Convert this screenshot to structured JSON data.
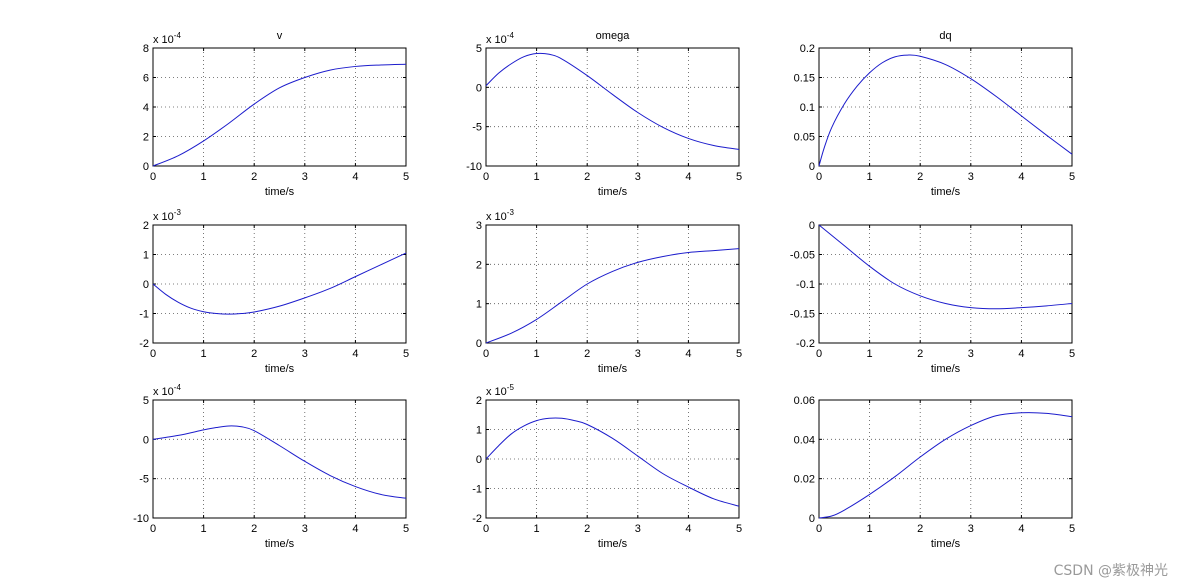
{
  "watermark": "CSDN @紫极神光",
  "colors": {
    "line": "#1c1ccc",
    "grid": "#555555",
    "axes": "#000000"
  },
  "chart_data": [
    {
      "type": "line",
      "title": "v",
      "xlabel": "time/s",
      "ylabel": "",
      "exponent": "-4",
      "xlim": [
        0,
        5
      ],
      "ylim": [
        0,
        8
      ],
      "xticks": [
        0,
        1,
        2,
        3,
        4,
        5
      ],
      "yticks": [
        0,
        2,
        4,
        6,
        8
      ],
      "grid": true,
      "x": [
        0,
        0.5,
        1,
        1.5,
        2,
        2.5,
        3,
        3.5,
        4,
        4.5,
        5
      ],
      "y": [
        0,
        0.7,
        1.7,
        2.9,
        4.2,
        5.3,
        6.0,
        6.5,
        6.75,
        6.85,
        6.9
      ]
    },
    {
      "type": "line",
      "title": "omega",
      "xlabel": "time/s",
      "ylabel": "",
      "exponent": "-4",
      "xlim": [
        0,
        5
      ],
      "ylim": [
        -10,
        5
      ],
      "xticks": [
        0,
        1,
        2,
        3,
        4,
        5
      ],
      "yticks": [
        -10,
        -5,
        0,
        5
      ],
      "grid": true,
      "x": [
        0,
        0.25,
        0.5,
        0.75,
        1,
        1.25,
        1.5,
        2,
        2.5,
        3,
        3.5,
        4,
        4.5,
        5
      ],
      "y": [
        0.2,
        1.8,
        3.0,
        3.9,
        4.3,
        4.2,
        3.6,
        1.5,
        -0.9,
        -3.2,
        -5.1,
        -6.5,
        -7.4,
        -7.9
      ]
    },
    {
      "type": "line",
      "title": "dq",
      "xlabel": "time/s",
      "ylabel": "",
      "exponent": "",
      "xlim": [
        0,
        5
      ],
      "ylim": [
        0,
        0.2
      ],
      "xticks": [
        0,
        1,
        2,
        3,
        4,
        5
      ],
      "yticks": [
        0,
        0.05,
        0.1,
        0.15,
        0.2
      ],
      "grid": true,
      "x": [
        0,
        0.1,
        0.25,
        0.5,
        0.75,
        1,
        1.25,
        1.5,
        1.75,
        2,
        2.5,
        3,
        3.5,
        4,
        4.5,
        5
      ],
      "y": [
        0,
        0.03,
        0.065,
        0.105,
        0.135,
        0.158,
        0.175,
        0.185,
        0.188,
        0.186,
        0.172,
        0.148,
        0.118,
        0.085,
        0.052,
        0.02
      ]
    },
    {
      "type": "line",
      "title": "",
      "xlabel": "time/s",
      "ylabel": "",
      "exponent": "-3",
      "xlim": [
        0,
        5
      ],
      "ylim": [
        -2,
        2
      ],
      "xticks": [
        0,
        1,
        2,
        3,
        4,
        5
      ],
      "yticks": [
        -2,
        -1,
        0,
        1,
        2
      ],
      "grid": true,
      "x": [
        0,
        0.25,
        0.5,
        0.75,
        1,
        1.25,
        1.5,
        1.75,
        2,
        2.5,
        3,
        3.5,
        4,
        4.5,
        5
      ],
      "y": [
        0,
        -0.35,
        -0.62,
        -0.82,
        -0.94,
        -1.0,
        -1.02,
        -1.0,
        -0.95,
        -0.75,
        -0.47,
        -0.15,
        0.25,
        0.65,
        1.05
      ]
    },
    {
      "type": "line",
      "title": "",
      "xlabel": "time/s",
      "ylabel": "",
      "exponent": "-3",
      "xlim": [
        0,
        5
      ],
      "ylim": [
        0,
        3
      ],
      "xticks": [
        0,
        1,
        2,
        3,
        4,
        5
      ],
      "yticks": [
        0,
        1,
        2,
        3
      ],
      "grid": true,
      "x": [
        0,
        0.5,
        1,
        1.5,
        2,
        2.5,
        3,
        3.5,
        4,
        4.5,
        5
      ],
      "y": [
        0,
        0.25,
        0.6,
        1.05,
        1.5,
        1.82,
        2.05,
        2.2,
        2.3,
        2.35,
        2.4
      ]
    },
    {
      "type": "line",
      "title": "",
      "xlabel": "time/s",
      "ylabel": "",
      "exponent": "",
      "xlim": [
        0,
        5
      ],
      "ylim": [
        -0.2,
        0
      ],
      "xticks": [
        0,
        1,
        2,
        3,
        4,
        5
      ],
      "yticks": [
        -0.2,
        -0.15,
        -0.1,
        -0.05,
        0
      ],
      "grid": true,
      "x": [
        0,
        0.5,
        1,
        1.5,
        2,
        2.5,
        3,
        3.5,
        4,
        4.5,
        5
      ],
      "y": [
        0,
        -0.035,
        -0.07,
        -0.1,
        -0.12,
        -0.133,
        -0.14,
        -0.142,
        -0.14,
        -0.137,
        -0.133
      ]
    },
    {
      "type": "line",
      "title": "",
      "xlabel": "time/s",
      "ylabel": "",
      "exponent": "-4",
      "xlim": [
        0,
        5
      ],
      "ylim": [
        -10,
        5
      ],
      "xticks": [
        0,
        1,
        2,
        3,
        4,
        5
      ],
      "yticks": [
        -10,
        -5,
        0,
        5
      ],
      "grid": true,
      "x": [
        0,
        0.5,
        1,
        1.25,
        1.5,
        1.75,
        2,
        2.5,
        3,
        3.5,
        4,
        4.5,
        5
      ],
      "y": [
        0,
        0.5,
        1.2,
        1.5,
        1.7,
        1.6,
        1.1,
        -0.8,
        -2.8,
        -4.6,
        -6.0,
        -7.0,
        -7.5
      ]
    },
    {
      "type": "line",
      "title": "",
      "xlabel": "time/s",
      "ylabel": "",
      "exponent": "-5",
      "xlim": [
        0,
        5
      ],
      "ylim": [
        -2,
        2
      ],
      "xticks": [
        0,
        1,
        2,
        3,
        4,
        5
      ],
      "yticks": [
        -2,
        -1,
        0,
        1,
        2
      ],
      "grid": true,
      "x": [
        0,
        0.25,
        0.5,
        0.75,
        1,
        1.25,
        1.5,
        1.75,
        2,
        2.5,
        3,
        3.5,
        4,
        4.5,
        5
      ],
      "y": [
        0,
        0.45,
        0.85,
        1.12,
        1.3,
        1.38,
        1.38,
        1.3,
        1.17,
        0.7,
        0.1,
        -0.5,
        -0.95,
        -1.35,
        -1.6
      ]
    },
    {
      "type": "line",
      "title": "",
      "xlabel": "time/s",
      "ylabel": "",
      "exponent": "",
      "xlim": [
        0,
        5
      ],
      "ylim": [
        0,
        0.06
      ],
      "xticks": [
        0,
        1,
        2,
        3,
        4,
        5
      ],
      "yticks": [
        0,
        0.02,
        0.04,
        0.06
      ],
      "grid": true,
      "x": [
        0,
        0.25,
        0.5,
        1,
        1.5,
        2,
        2.5,
        3,
        3.5,
        4,
        4.5,
        5
      ],
      "y": [
        0,
        0.001,
        0.004,
        0.012,
        0.021,
        0.031,
        0.04,
        0.047,
        0.052,
        0.0535,
        0.0532,
        0.0515
      ]
    }
  ]
}
